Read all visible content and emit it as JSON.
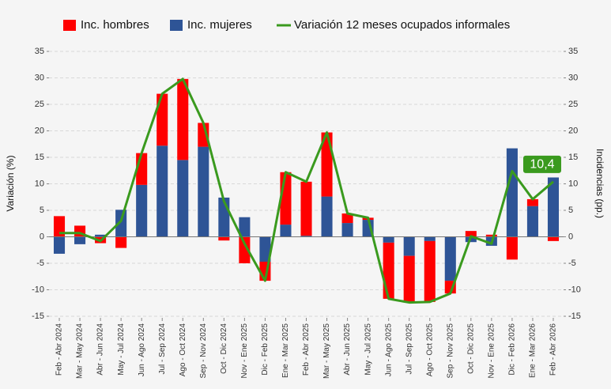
{
  "chart_data": {
    "type": "bar",
    "categories": [
      "Feb - Abr 2024",
      "Mar - May 2024",
      "Abr - Jun 2024",
      "May - Jul 2024",
      "Jun - Ago 2024",
      "Jul - Sep 2024",
      "Ago - Oct 2024",
      "Sep - Nov 2024",
      "Oct - Dic 2024",
      "Nov - Ene 2025",
      "Dic - Feb 2025",
      "Ene - Mar 2025",
      "Feb - Abr 2025",
      "Mar - May 2025",
      "Abr - Jun 2025",
      "May - Jul 2025",
      "Jun - Ago 2025",
      "Jul - Sep 2025",
      "Ago - Oct 2025",
      "Sep - Nov 2025",
      "Oct - Dic 2025",
      "Nov - Ene 2025",
      "Dic - Feb 2026",
      "Ene - Mar 2026",
      "Feb - Abr 2026"
    ],
    "series": [
      {
        "name": "Inc. hombres",
        "color": "#ff0000",
        "axis": "y2",
        "values": [
          3.9,
          2.1,
          -1.2,
          -2.1,
          6.0,
          9.8,
          15.3,
          4.5,
          -0.7,
          -5.0,
          -3.6,
          9.9,
          10.2,
          12.1,
          1.8,
          0.4,
          -10.6,
          -8.8,
          -11.5,
          -2.4,
          1.1,
          0.4,
          -4.3,
          1.3,
          -0.8
        ]
      },
      {
        "name": "Inc. mujeres",
        "color": "#2e5496",
        "axis": "y2",
        "values": [
          -3.2,
          -1.4,
          0.4,
          5.1,
          9.8,
          17.2,
          14.5,
          17.0,
          7.4,
          3.7,
          -4.7,
          2.3,
          0.2,
          7.6,
          2.6,
          3.2,
          -1.1,
          -3.6,
          -0.8,
          -8.3,
          -1.0,
          -1.7,
          16.7,
          5.8,
          11.2
        ]
      },
      {
        "name": "Variación 12 meses ocupados informales",
        "color": "#3a9a1e",
        "type": "line",
        "values": [
          0.7,
          0.7,
          -0.8,
          3.0,
          15.8,
          27.0,
          29.8,
          21.5,
          6.7,
          -1.3,
          -8.3,
          12.2,
          10.4,
          19.7,
          4.4,
          3.6,
          -11.7,
          -12.4,
          -12.3,
          -10.7,
          0.1,
          -1.3,
          12.4,
          7.1,
          10.4
        ],
        "value_labels": [
          null,
          null,
          null,
          null,
          null,
          null,
          null,
          null,
          null,
          null,
          null,
          null,
          null,
          null,
          null,
          null,
          null,
          null,
          null,
          null,
          null,
          null,
          null,
          null,
          "10,4"
        ]
      }
    ],
    "y_label": "Variación (%)",
    "y2_label": "Incidencias (pp.)",
    "ylim": [
      -15,
      35
    ],
    "yticks": [
      -15,
      -10,
      -5,
      0,
      5,
      10,
      15,
      20,
      25,
      30,
      35
    ],
    "y2lim": [
      -15,
      35
    ],
    "y2ticks": [
      -15,
      -10,
      -5,
      0,
      5,
      10,
      15,
      20,
      25,
      30,
      35
    ],
    "grid": true,
    "legend": "top"
  }
}
